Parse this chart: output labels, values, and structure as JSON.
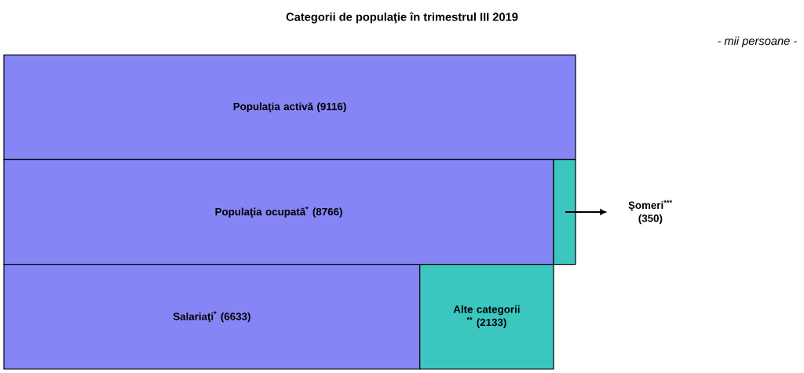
{
  "chart_data": {
    "type": "bar",
    "title": "Categorii de populaţie în trimestrul III 2019",
    "subtitle": "- mii persoane -",
    "orientation": "horizontal",
    "stacked": true,
    "categories": [
      null,
      null,
      null
    ],
    "series": [
      {
        "color": "#8585f5",
        "values": [
          9116,
          8766,
          6633
        ],
        "value_labels": [
          "Populaţia activă (9116)",
          "Populaţia ocupată$^{*}$ (8766)",
          "Salariaţi$^{*}$ (6633)"
        ]
      },
      {
        "color": "#3cc6c0",
        "values": [
          null,
          350,
          2133
        ],
        "value_labels": [
          null,
          "Şomeri$^{***}$ (350)",
          "Alte categorii $^{**}$ (2133)"
        ]
      }
    ]
  }
}
